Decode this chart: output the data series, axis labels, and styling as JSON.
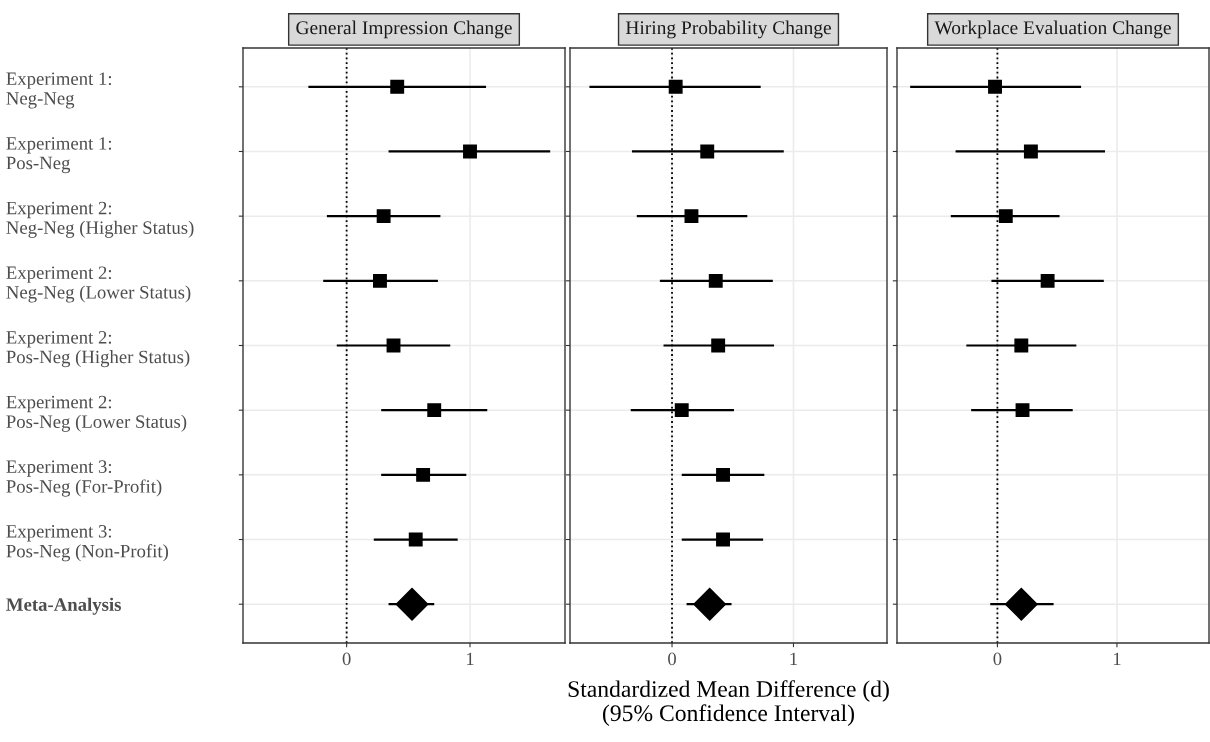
{
  "chart_data": [
    {
      "type": "scatter",
      "orientation": "horizontal",
      "title": "General Impression Change",
      "categories": [
        "Experiment 1:\nNeg-Neg",
        "Experiment 1:\nPos-Neg",
        "Experiment 2:\nNeg-Neg (Higher Status)",
        "Experiment 2:\nNeg-Neg (Lower Status)",
        "Experiment 2:\nPos-Neg (Higher Status)",
        "Experiment 2:\nPos-Neg (Lower Status)",
        "Experiment 3:\nPos-Neg (For-Profit)",
        "Experiment 3:\nPos-Neg (Non-Profit)",
        "Meta-Analysis"
      ],
      "series": [
        {
          "color": "#000000",
          "marker": "square",
          "values": [
            0.41,
            1.0,
            0.3,
            0.27,
            0.38,
            0.71,
            0.62,
            0.56,
            null
          ],
          "errors": [
            [
              -0.31,
              1.13
            ],
            [
              0.34,
              1.65
            ],
            [
              -0.16,
              0.76
            ],
            [
              -0.19,
              0.74
            ],
            [
              -0.08,
              0.84
            ],
            [
              0.28,
              1.14
            ],
            [
              0.28,
              0.97
            ],
            [
              0.22,
              0.9
            ],
            null
          ]
        },
        {
          "color": "#000000",
          "marker": "diamond",
          "values": [
            null,
            null,
            null,
            null,
            null,
            null,
            null,
            null,
            0.53
          ],
          "errors": [
            null,
            null,
            null,
            null,
            null,
            null,
            null,
            null,
            [
              0.34,
              0.71
            ]
          ]
        }
      ],
      "xlim": [
        -0.84,
        1.77
      ],
      "xticks": [
        0,
        1
      ],
      "grid": true,
      "ref_lines": [
        {
          "axis": "x",
          "value": 0,
          "color": "#000000",
          "line_style": "dotted"
        }
      ]
    },
    {
      "type": "scatter",
      "orientation": "horizontal",
      "title": "Hiring Probability Change",
      "xlabel": "Standardized Mean Difference (d)\n(95% Confidence Interval)",
      "categories": [
        null,
        null,
        null,
        null,
        null,
        null,
        null,
        null,
        null
      ],
      "series": [
        {
          "color": "#000000",
          "marker": "square",
          "values": [
            0.03,
            0.29,
            0.16,
            0.36,
            0.38,
            0.08,
            0.42,
            0.42,
            null
          ],
          "errors": [
            [
              -0.68,
              0.73
            ],
            [
              -0.33,
              0.92
            ],
            [
              -0.29,
              0.62
            ],
            [
              -0.1,
              0.83
            ],
            [
              -0.07,
              0.84
            ],
            [
              -0.34,
              0.51
            ],
            [
              0.08,
              0.76
            ],
            [
              0.08,
              0.75
            ],
            null
          ]
        },
        {
          "color": "#000000",
          "marker": "diamond",
          "values": [
            null,
            null,
            null,
            null,
            null,
            null,
            null,
            null,
            0.31
          ],
          "errors": [
            null,
            null,
            null,
            null,
            null,
            null,
            null,
            null,
            [
              0.12,
              0.49
            ]
          ]
        }
      ],
      "xlim": [
        -0.84,
        1.77
      ],
      "xticks": [
        0,
        1
      ],
      "grid": true,
      "tick_labels": "x",
      "ref_lines": [
        {
          "axis": "x",
          "value": 0,
          "color": "#000000",
          "line_style": "dotted"
        }
      ]
    },
    {
      "type": "scatter",
      "orientation": "horizontal",
      "title": "Workplace Evaluation Change",
      "categories": [
        null,
        null,
        null,
        null,
        null,
        null,
        null,
        null,
        null
      ],
      "series": [
        {
          "color": "#000000",
          "marker": "square",
          "values": [
            -0.02,
            0.28,
            0.07,
            0.42,
            0.2,
            0.21,
            null,
            null,
            null
          ],
          "errors": [
            [
              -0.73,
              0.7
            ],
            [
              -0.35,
              0.9
            ],
            [
              -0.39,
              0.52
            ],
            [
              -0.05,
              0.89
            ],
            [
              -0.26,
              0.66
            ],
            [
              -0.22,
              0.63
            ],
            null,
            null,
            null
          ]
        },
        {
          "color": "#000000",
          "marker": "diamond",
          "values": [
            null,
            null,
            null,
            null,
            null,
            null,
            null,
            null,
            0.2
          ],
          "errors": [
            null,
            null,
            null,
            null,
            null,
            null,
            null,
            null,
            [
              -0.06,
              0.47
            ]
          ]
        }
      ],
      "xlim": [
        -0.84,
        1.77
      ],
      "xticks": [
        0,
        1
      ],
      "grid": true,
      "tick_labels": "x",
      "ref_lines": [
        {
          "axis": "x",
          "value": 0,
          "color": "#000000",
          "line_style": "dotted"
        }
      ]
    }
  ]
}
